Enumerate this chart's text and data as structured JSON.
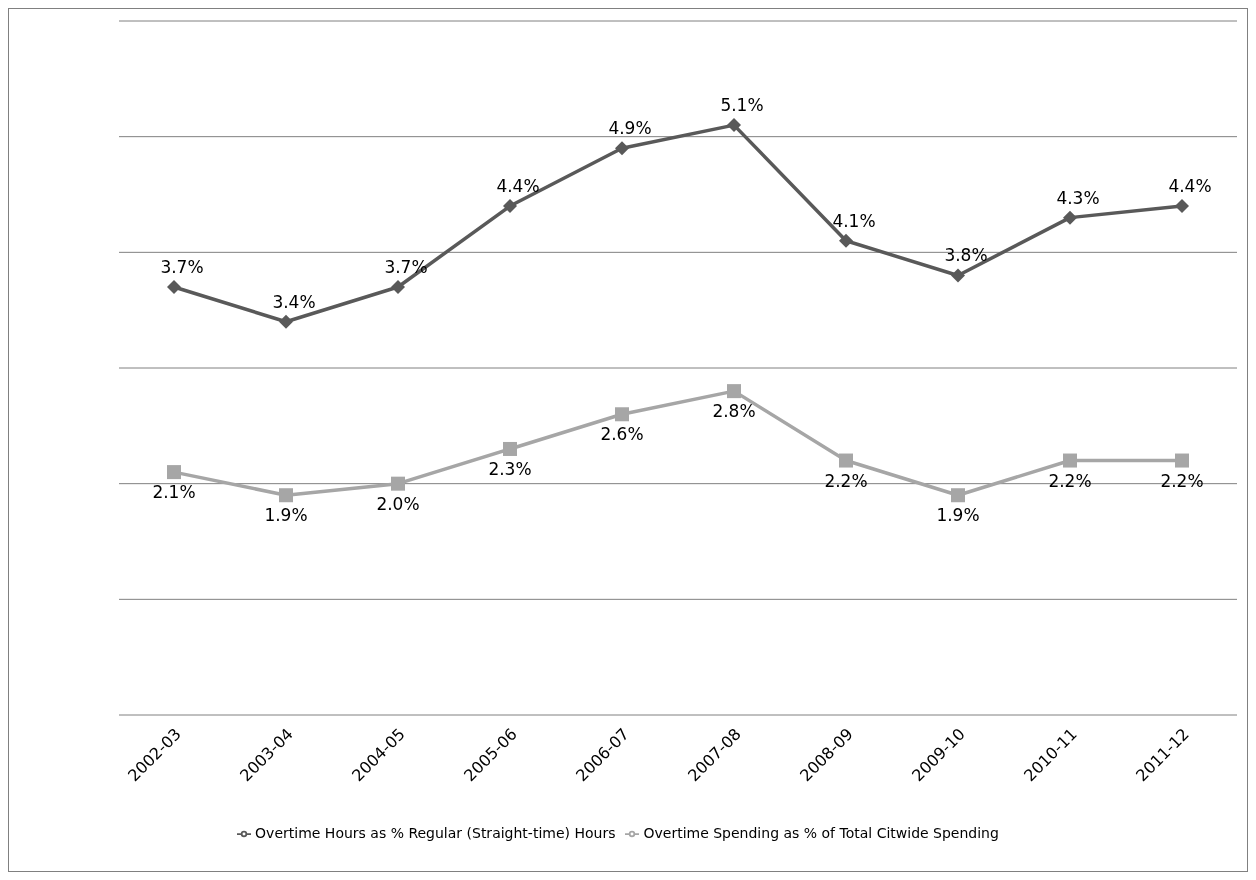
{
  "chart_data": {
    "type": "line",
    "categories": [
      "2002-03",
      "2003-04",
      "2004-05",
      "2005-06",
      "2006-07",
      "2007-08",
      "2008-09",
      "2009-10",
      "2010-11",
      "2011-12"
    ],
    "series": [
      {
        "name": "Overtime Hours as % Regular (Straight-time) Hours",
        "color": "#595959",
        "marker": "diamond",
        "values": [
          3.7,
          3.4,
          3.7,
          4.4,
          4.9,
          5.1,
          4.1,
          3.8,
          4.3,
          4.4
        ],
        "value_labels": [
          "3.7%",
          "3.4%",
          "3.7%",
          "4.4%",
          "4.9%",
          "5.1%",
          "4.1%",
          "3.8%",
          "4.3%",
          "4.4%"
        ]
      },
      {
        "name": "Overtime Spending as % of Total Citwide Spending",
        "color": "#a6a6a6",
        "marker": "square",
        "values": [
          2.1,
          1.9,
          2.0,
          2.3,
          2.6,
          2.8,
          2.2,
          1.9,
          2.2,
          2.2
        ],
        "value_labels": [
          "2.1%",
          "1.9%",
          "2.0%",
          "2.3%",
          "2.6%",
          "2.8%",
          "2.2%",
          "1.9%",
          "2.2%",
          "2.2%"
        ]
      }
    ],
    "relative": false,
    "ylim": [
      0,
      6
    ],
    "yticks": [
      {
        "value": 0,
        "label": null
      },
      {
        "value": 1,
        "label": null
      },
      {
        "value": 2,
        "label": null
      },
      {
        "value": 3,
        "label": null
      },
      {
        "value": 4,
        "label": null
      },
      {
        "value": 5,
        "label": null
      },
      {
        "value": 6,
        "label": null
      }
    ],
    "tick_labels": "x",
    "grid": "y",
    "legend": "bottom",
    "line_style": "solid"
  }
}
